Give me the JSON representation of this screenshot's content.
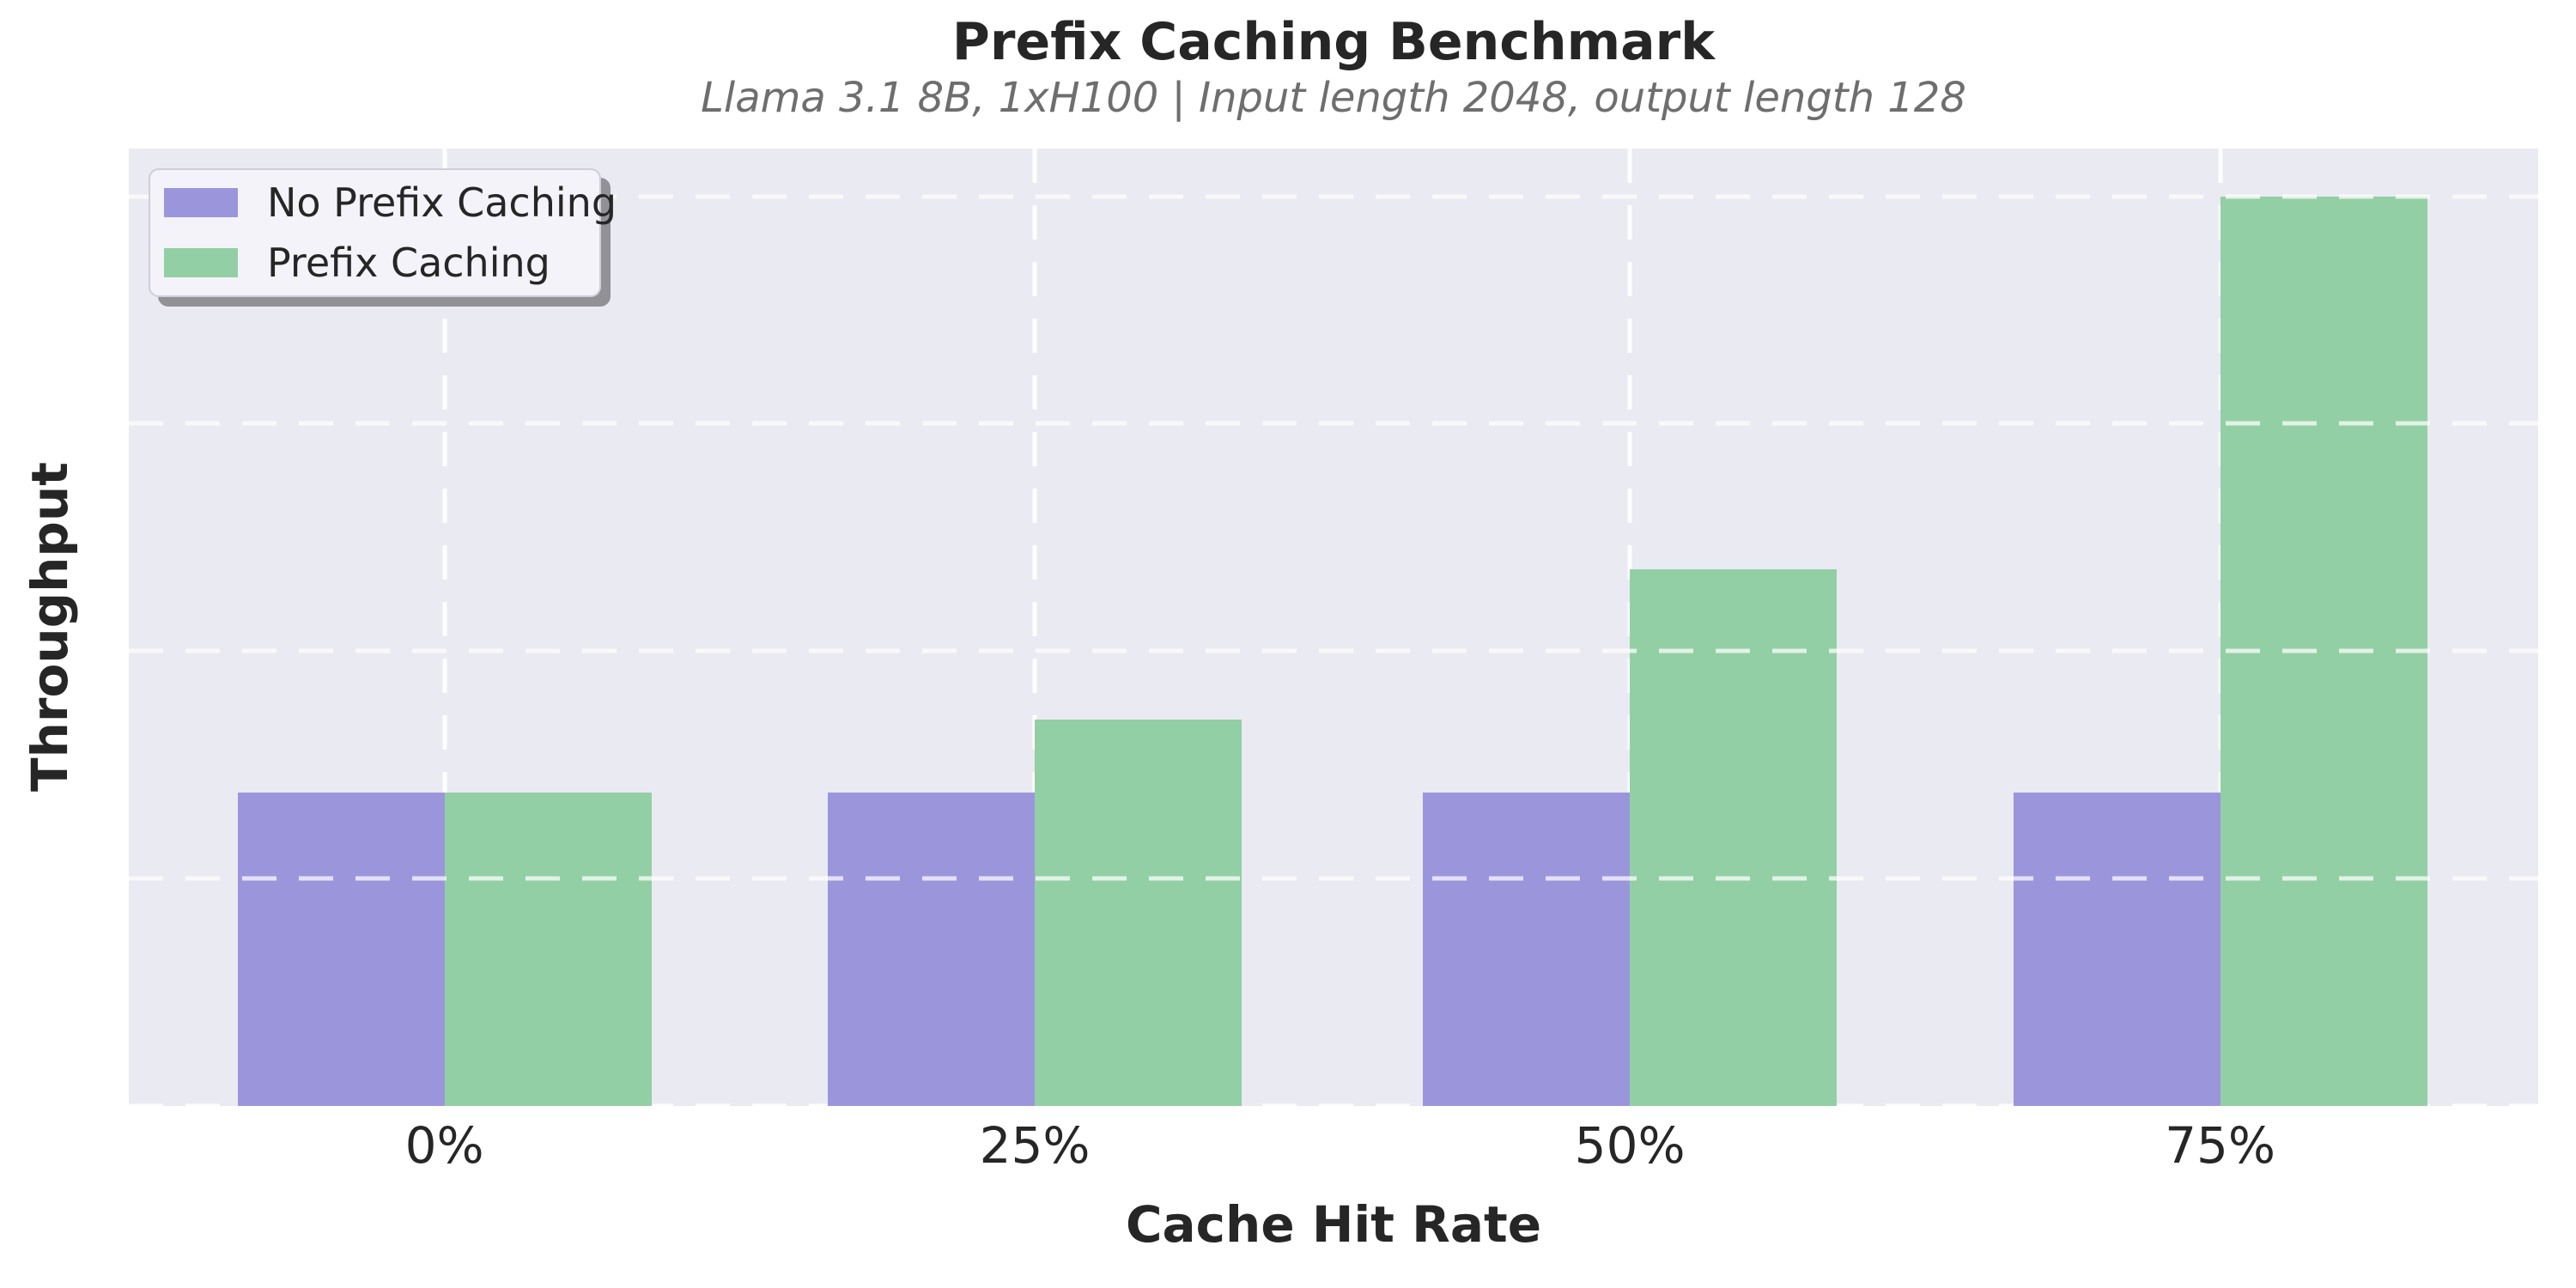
{
  "title": "Prefix Caching Benchmark",
  "subtitle": "Llama 3.1 8B, 1xH100 | Input length 2048, output length 128",
  "axes": {
    "x_label": "Cache Hit Rate",
    "y_label": "Throughput",
    "x_tick_labels": [
      "0%",
      "25%",
      "50%",
      "75%"
    ],
    "y_tick_labels_visible": false
  },
  "legend": {
    "position": "upper left",
    "items": [
      {
        "label": "No Prefix Caching",
        "color": "#9b96dc"
      },
      {
        "label": "Prefix Caching",
        "color": "#93cfa4"
      }
    ]
  },
  "colors": {
    "figure_background": "#ffffff",
    "plot_background": "#eaeaf2",
    "grid": "#ffffff",
    "title_text": "#262626",
    "subtitle_text": "#6e6e6e",
    "tick_text": "#262626",
    "bar_no_prefix_caching": "#9b96dc",
    "bar_prefix_caching": "#93cfa4",
    "legend_background": "#f3f3f9",
    "legend_border": "#cfcfda"
  },
  "chart_data": {
    "type": "bar",
    "title": "Prefix Caching Benchmark",
    "subtitle": "Llama 3.1 8B, 1xH100 | Input length 2048, output length 128",
    "xlabel": "Cache Hit Rate",
    "ylabel": "Throughput",
    "categories": [
      "0%",
      "25%",
      "50%",
      "75%"
    ],
    "series": [
      {
        "name": "No Prefix Caching",
        "color": "#9b96dc",
        "values": [
          1.38,
          1.38,
          1.38,
          1.38
        ]
      },
      {
        "name": "Prefix Caching",
        "color": "#93cfa4",
        "values": [
          1.38,
          1.7,
          2.36,
          4.0
        ]
      }
    ],
    "value_note": "y-axis shows no tick labels; values are relative throughput in units of one gridline spacing",
    "ylim": [
      0,
      4.21
    ],
    "y_grid_values": [
      0,
      1,
      2,
      3,
      4
    ],
    "x_tick_pct": [
      13.1,
      37.6,
      62.3,
      86.8
    ],
    "bar_width_pct": 8.59,
    "grid": "dashed white (seaborn darkgrid)",
    "legend_position": "upper left"
  }
}
